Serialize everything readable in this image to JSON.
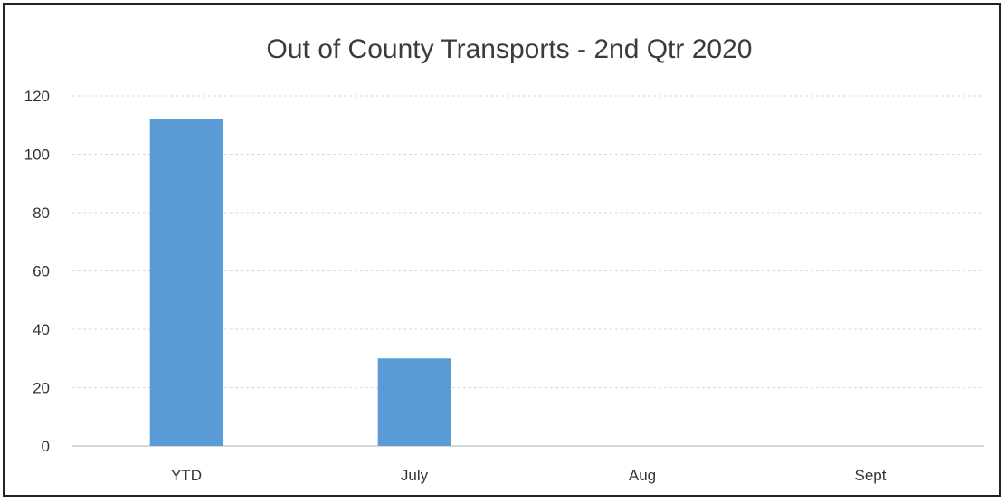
{
  "chart_data": {
    "type": "bar",
    "title": "Out of County Transports - 2nd Qtr 2020",
    "xlabel": "",
    "ylabel": "",
    "categories": [
      "YTD",
      "July",
      "Aug",
      "Sept"
    ],
    "values": [
      112,
      30,
      0,
      0
    ],
    "ylim": [
      0,
      120
    ],
    "yticks": [
      "0",
      "20",
      "40",
      "60",
      "80",
      "100",
      "120"
    ],
    "grid": true,
    "legend": "none",
    "bar_color": "#5b9bd5"
  }
}
